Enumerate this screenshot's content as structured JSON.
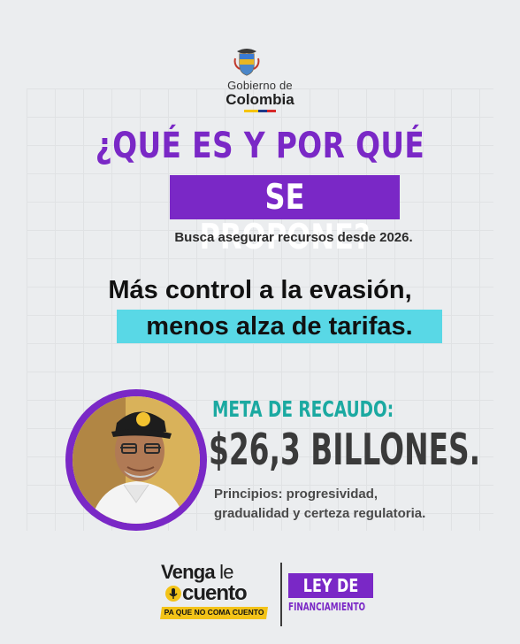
{
  "header": {
    "gov_line1": "Gobierno de",
    "gov_line2": "Colombia",
    "crest_icon": "colombia-coat-of-arms-icon",
    "flag_colors": [
      "#f5c400",
      "#1e3a8a",
      "#d62828"
    ]
  },
  "hero": {
    "title_line1": "¿QUÉ ES Y POR QUÉ",
    "title_line2": "SE PROPONE?",
    "subtitle": "Busca asegurar recursos desde 2026."
  },
  "message": {
    "line1": "Más control a la evasión,",
    "line2": "menos alza de tarifas."
  },
  "goal": {
    "label": "META DE RECAUDO:",
    "value": "$26,3 BILLONES.",
    "principles_line1": "Principios: progresividad,",
    "principles_line2": "gradualidad y certeza regulatoria."
  },
  "footer": {
    "brand_line1_bold": "Venga",
    "brand_line1_light": " le",
    "brand_line2": "cuento",
    "brand_tagline": "PA QUE NO COMA CUENTO",
    "law_label": "LEY DE",
    "law_sublabel": "FINANCIAMIENTO"
  },
  "colors": {
    "accent_purple": "#7a28c6",
    "accent_cyan": "#59d8e6",
    "accent_teal": "#1ba9a1",
    "accent_yellow": "#f3c318",
    "background": "#ebedef"
  }
}
